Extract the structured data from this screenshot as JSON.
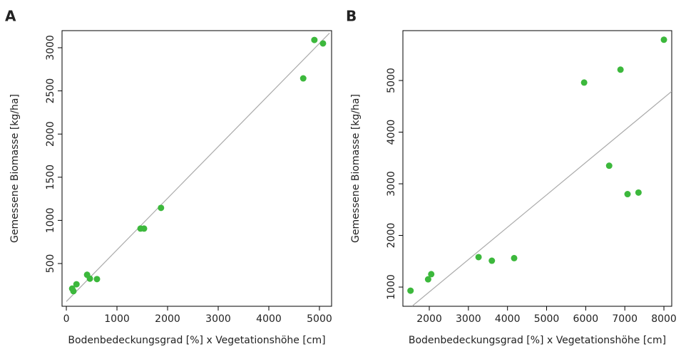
{
  "chart_data": [
    {
      "type": "scatter",
      "panel_label": "A",
      "x_label": "Bodenbedeckungsgrad [%] x Vegetationshöhe [cm]",
      "y_label": "Gemessene Biomasse [kg/ha]",
      "color": "#3cb83c",
      "line_color": "#aaaaaa",
      "x": [
        4900,
        5070,
        4680,
        1870,
        1465,
        1535,
        605,
        465,
        410,
        200,
        115,
        140
      ],
      "values": [
        3090,
        3050,
        2645,
        1145,
        905,
        905,
        320,
        325,
        370,
        260,
        210,
        180
      ],
      "fit_line": {
        "x": [
          0,
          5200
        ],
        "y": [
          60,
          3170
        ]
      },
      "xlim": [
        -85,
        5240
      ],
      "ylim": [
        5,
        3198
      ],
      "xticks": [
        0,
        1000,
        2000,
        3000,
        4000,
        5000
      ],
      "yticks": [
        500,
        1000,
        1500,
        2000,
        2500,
        3000
      ]
    },
    {
      "type": "scatter",
      "panel_label": "B",
      "x_label": "Bodenbedeckungsgrad [%] x Vegetationshöhe [cm]",
      "y_label": "Gemessene Biomasse [kg/ha]",
      "color": "#3cb83c",
      "line_color": "#aaaaaa",
      "x": [
        8000,
        6890,
        5960,
        6600,
        7070,
        7350,
        4170,
        3600,
        3260,
        2050,
        1970,
        1520
      ],
      "values": [
        5790,
        5210,
        4960,
        3350,
        2800,
        2830,
        1560,
        1510,
        1580,
        1250,
        1150,
        930
      ],
      "fit_line": {
        "x": [
          1560,
          8200
        ],
        "y": [
          630,
          4790
        ]
      },
      "xlim": [
        1325,
        8200
      ],
      "ylim": [
        628,
        5966
      ],
      "xticks": [
        2000,
        3000,
        4000,
        5000,
        6000,
        7000,
        8000
      ],
      "yticks": [
        1000,
        2000,
        3000,
        4000,
        5000
      ]
    }
  ]
}
